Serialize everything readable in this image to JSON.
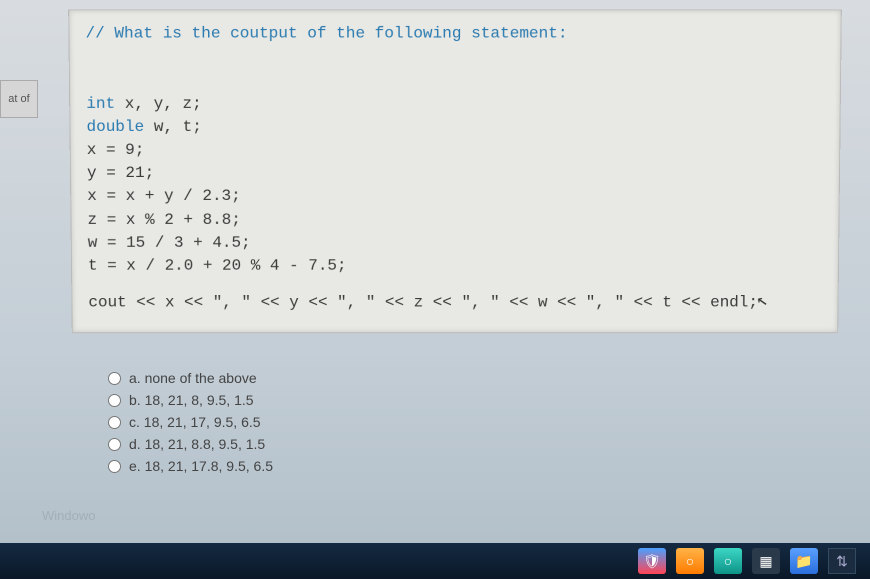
{
  "leftTab": {
    "label": "at of"
  },
  "code": {
    "comment": "// What is the coutput of the following statement:",
    "lines": {
      "l1a": "int",
      "l1b": " x, y, z;",
      "l2a": "double",
      "l2b": " w, t;",
      "l3": "x = 9;",
      "l4": "y = 21;",
      "l5": "x = x + y / 2.3;",
      "l6": "z = x % 2 + 8.8;",
      "l7": "w = 15 / 3 + 4.5;",
      "l8": "t = x / 2.0 + 20 % 4 - 7.5;",
      "cout": "cout << x << \", \" << y << \", \" << z << \", \" << w << \", \" << t << endl;"
    },
    "colors": {
      "background": "#e8e8e4",
      "text": "#3a3a3a",
      "keyword": "#2a7ab0",
      "comment": "#2a7ab0"
    }
  },
  "answers": {
    "options": [
      {
        "key": "a",
        "label": "a. none of the above"
      },
      {
        "key": "b",
        "label": "b. 18, 21, 8, 9.5, 1.5"
      },
      {
        "key": "c",
        "label": "c. 18, 21, 17, 9.5, 6.5"
      },
      {
        "key": "d",
        "label": "d. 18, 21, 8.8, 9.5, 1.5"
      },
      {
        "key": "e",
        "label": "e. 18, 21, 17.8, 9.5, 6.5"
      }
    ],
    "windowedPrefix": "Windowo"
  },
  "taskbar": {
    "icons": {
      "shield": "🛡",
      "browser": "○",
      "folder": "📁",
      "store": "▦"
    },
    "tray": "⇅"
  }
}
